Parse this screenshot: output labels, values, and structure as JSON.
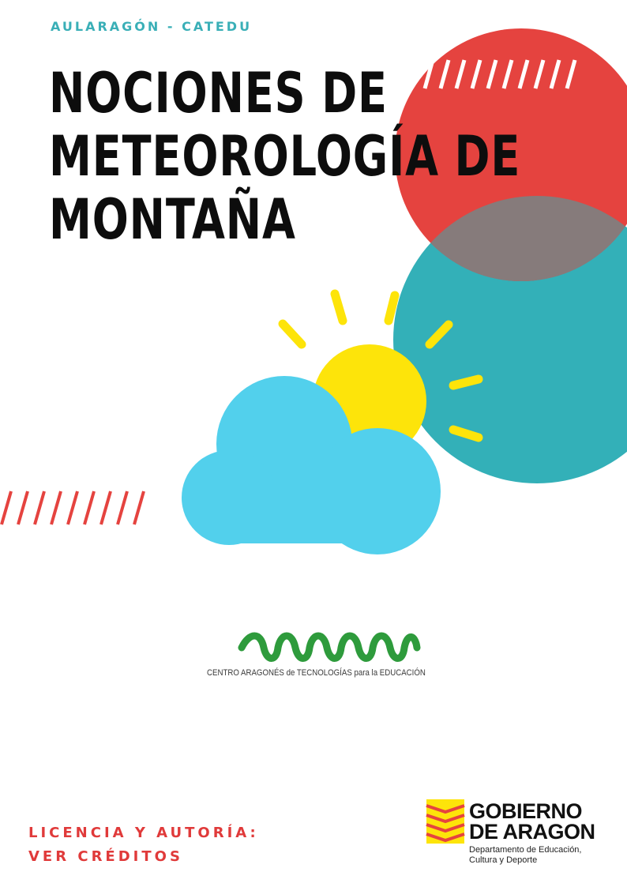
{
  "header": {
    "label": "AULARAGÓN - CATEDU"
  },
  "title": {
    "lines": [
      "NOCIONES DE",
      "METEOROLOGÍA DE",
      "MONTAÑA"
    ]
  },
  "cate": {
    "caption": "CENTRO ARAGONÉS de TECNOLOGÍAS para la EDUCACIÓN"
  },
  "licence": {
    "line1": "LICENCIA Y AUTORÍA:",
    "line2": "VER CRÉDITOS"
  },
  "gobierno": {
    "name_line1": "GOBIERNO",
    "name_line2": "DE ARAGON",
    "dept_line1": "Departamento de Educación,",
    "dept_line2": "Cultura y Deporte"
  },
  "colors": {
    "red": "#e5433f",
    "teal": "#33b0b8",
    "grey": "#867b7b",
    "cloud": "#52d0ec",
    "sun": "#fde40a",
    "cate_green": "#2e9b3c",
    "text_teal": "#3aafb7",
    "text_red": "#e03a3a"
  }
}
